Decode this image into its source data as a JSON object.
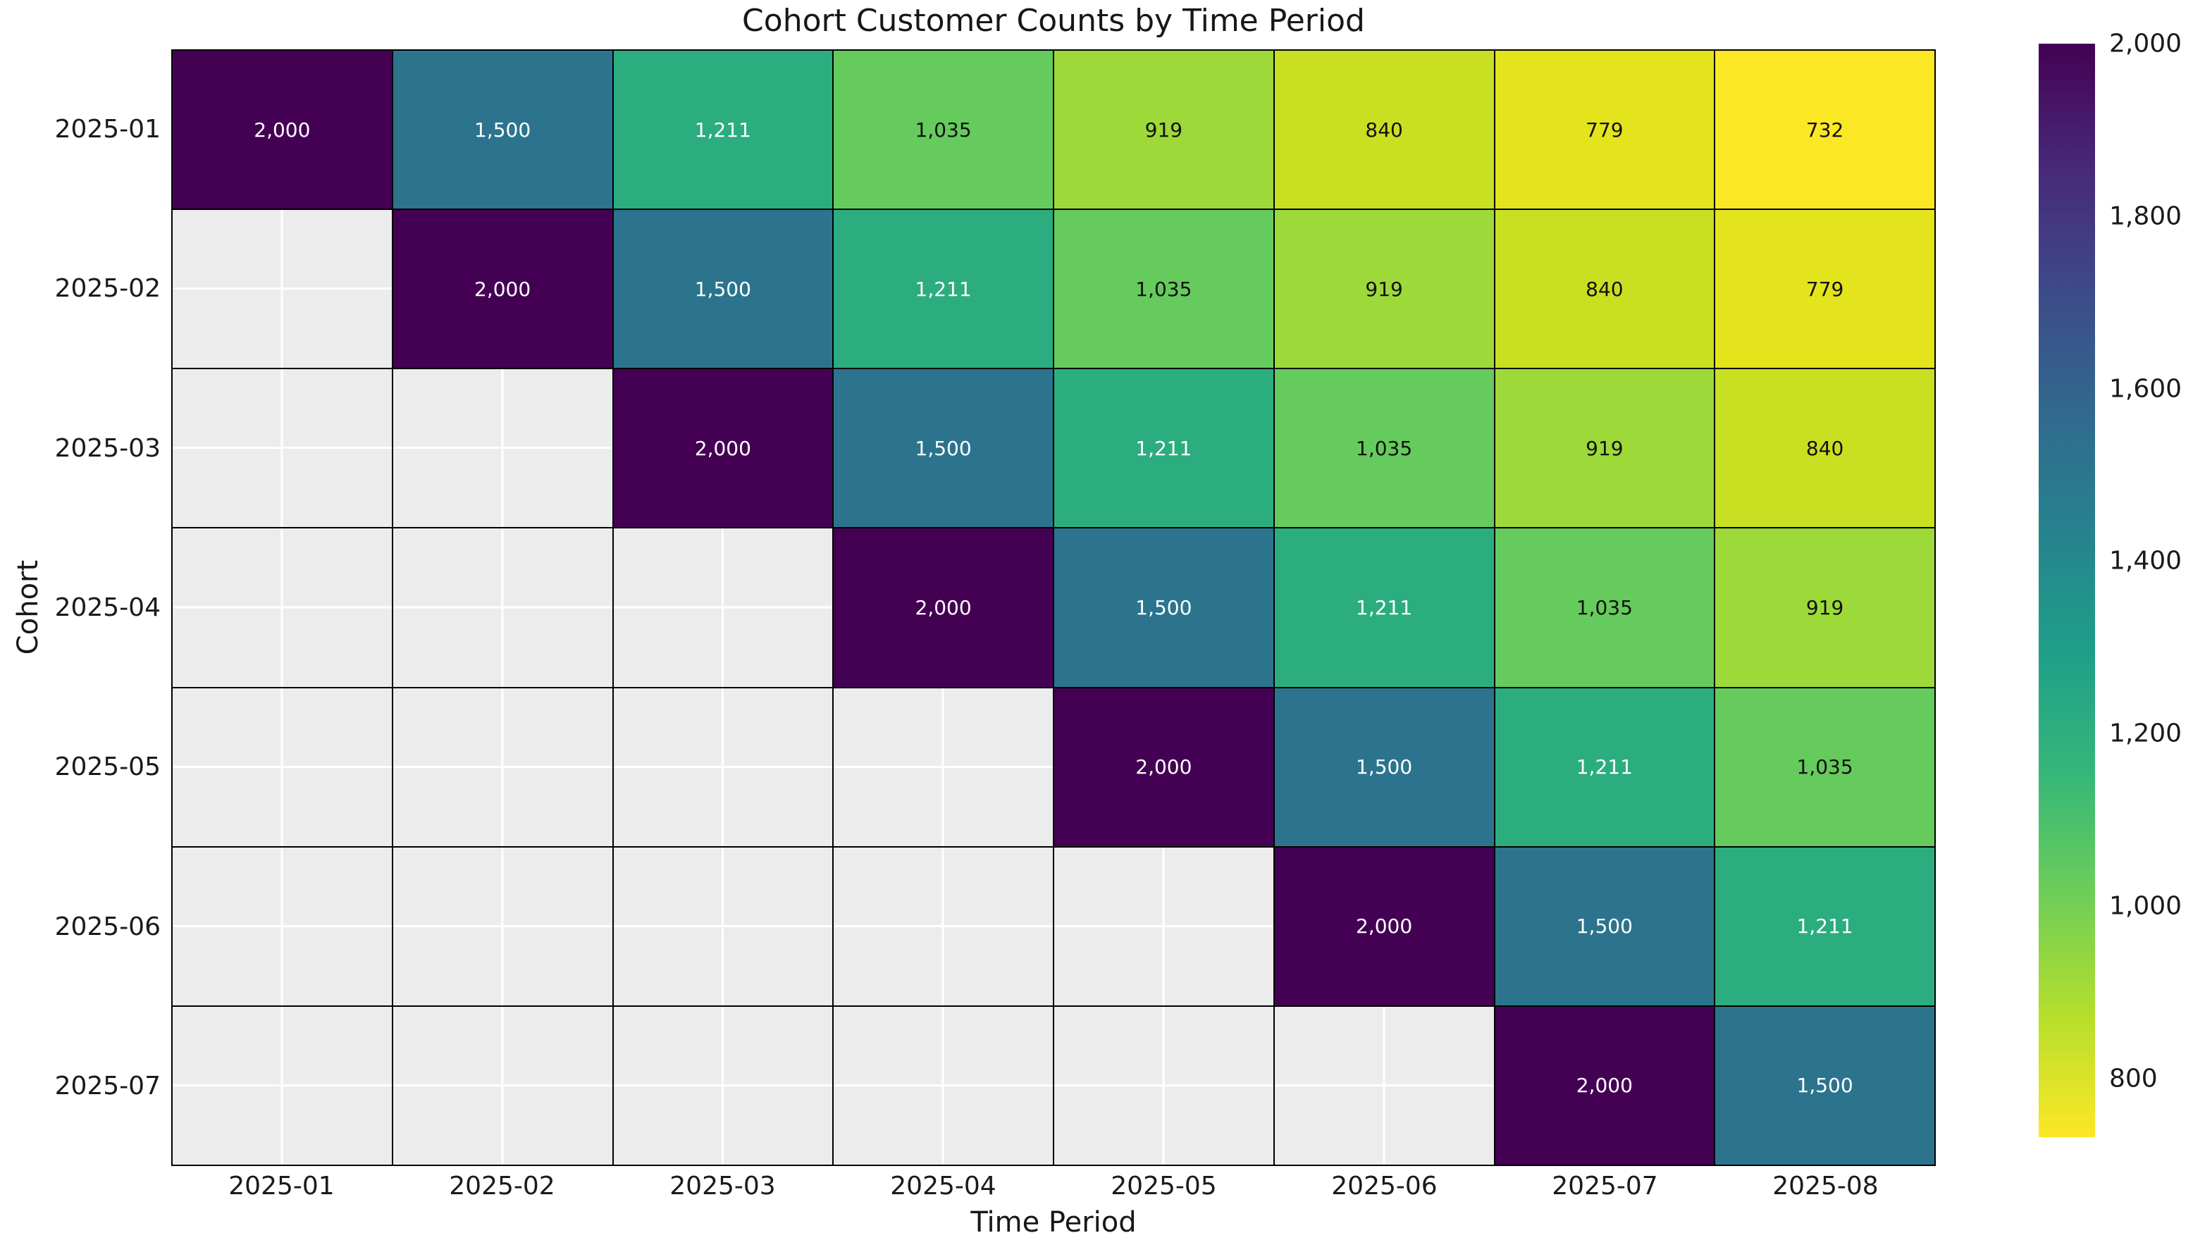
{
  "chart_data": {
    "type": "heatmap",
    "title": "Cohort Customer Counts by Time Period",
    "xlabel": "Time Period",
    "ylabel": "Cohort",
    "x_categories": [
      "2025-01",
      "2025-02",
      "2025-03",
      "2025-04",
      "2025-05",
      "2025-06",
      "2025-07",
      "2025-08"
    ],
    "y_categories": [
      "2025-01",
      "2025-02",
      "2025-03",
      "2025-04",
      "2025-05",
      "2025-06",
      "2025-07"
    ],
    "values": [
      [
        2000,
        1500,
        1211,
        1035,
        919,
        840,
        779,
        732
      ],
      [
        null,
        2000,
        1500,
        1211,
        1035,
        919,
        840,
        779
      ],
      [
        null,
        null,
        2000,
        1500,
        1211,
        1035,
        919,
        840
      ],
      [
        null,
        null,
        null,
        2000,
        1500,
        1211,
        1035,
        919
      ],
      [
        null,
        null,
        null,
        null,
        2000,
        1500,
        1211,
        1035
      ],
      [
        null,
        null,
        null,
        null,
        null,
        2000,
        1500,
        1211
      ],
      [
        null,
        null,
        null,
        null,
        null,
        null,
        2000,
        1500
      ]
    ],
    "value_styles": {
      "2000": {
        "label": "2,000",
        "bg": "#440154",
        "fg": "#ffffff"
      },
      "1500": {
        "label": "1,500",
        "bg": "#2c748e",
        "fg": "#ffffff"
      },
      "1211": {
        "label": "1,211",
        "bg": "#2cad7f",
        "fg": "#ffffff"
      },
      "1035": {
        "label": "1,035",
        "bg": "#65cb5d",
        "fg": "#111111"
      },
      "919": {
        "label": "919",
        "bg": "#9ed93a",
        "fg": "#111111"
      },
      "840": {
        "label": "840",
        "bg": "#c8e021",
        "fg": "#111111"
      },
      "779": {
        "label": "779",
        "bg": "#e3e41c",
        "fg": "#111111"
      },
      "732": {
        "label": "732",
        "bg": "#fbe723",
        "fg": "#111111"
      }
    },
    "empty_cell_color": "#ececec",
    "grid_line_color": "#000000",
    "colorbar": {
      "vmin": 732,
      "vmax": 2000,
      "ticks": [
        {
          "label": "2,000",
          "value": 2000
        },
        {
          "label": "1,800",
          "value": 1800
        },
        {
          "label": "1,600",
          "value": 1600
        },
        {
          "label": "1,400",
          "value": 1400
        },
        {
          "label": "1,200",
          "value": 1200
        },
        {
          "label": "1,000",
          "value": 1000
        },
        {
          "label": "800",
          "value": 800
        }
      ],
      "gradient": [
        "#440154",
        "#482878",
        "#3e4989",
        "#31688e",
        "#26828e",
        "#1f9e89",
        "#35b779",
        "#6ece58",
        "#b5de2b",
        "#fde725"
      ]
    }
  }
}
